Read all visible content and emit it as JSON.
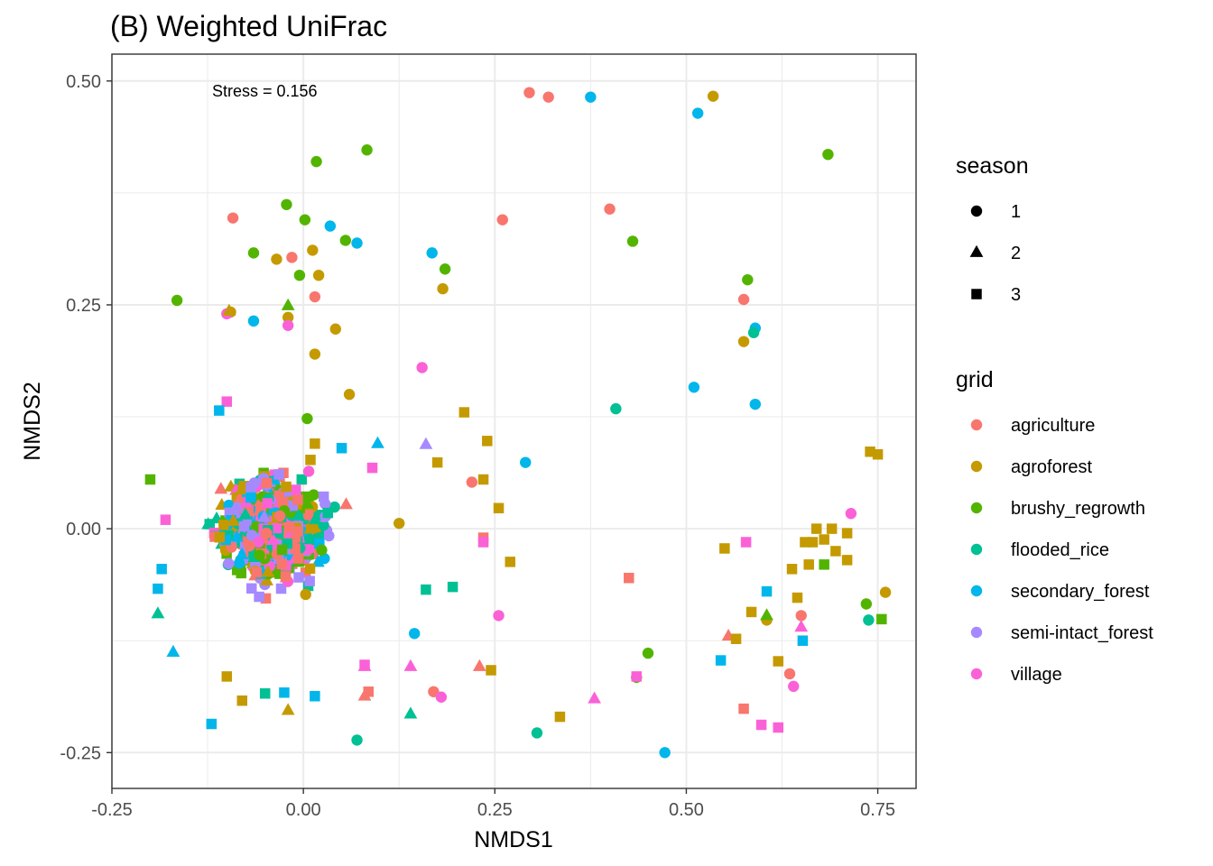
{
  "chart_data": {
    "type": "scatter",
    "title": "(B) Weighted UniFrac",
    "xlabel": "NMDS1",
    "ylabel": "NMDS2",
    "xlim": [
      -0.25,
      0.8
    ],
    "ylim": [
      -0.29,
      0.53
    ],
    "x_ticks": [
      -0.25,
      0.0,
      0.25,
      0.5,
      0.75
    ],
    "x_tick_labels": [
      "-0.25",
      "0.00",
      "0.25",
      "0.50",
      "0.75"
    ],
    "y_ticks": [
      -0.25,
      0.0,
      0.25,
      0.5
    ],
    "y_tick_labels": [
      "-0.25",
      "0.00",
      "0.25",
      "0.50"
    ],
    "grid": true,
    "annotation": "Stress = 0.156",
    "legend_position": "right",
    "legends": {
      "shape": {
        "title": "season",
        "items": [
          {
            "label": "1",
            "shape": "circle"
          },
          {
            "label": "2",
            "shape": "triangle"
          },
          {
            "label": "3",
            "shape": "square"
          }
        ]
      },
      "color": {
        "title": "grid",
        "items": [
          {
            "label": "agriculture",
            "color": "#F8766D"
          },
          {
            "label": "agroforest",
            "color": "#C49A00"
          },
          {
            "label": "brushy_regrowth",
            "color": "#53B400"
          },
          {
            "label": "flooded_rice",
            "color": "#00C094"
          },
          {
            "label": "secondary_forest",
            "color": "#00B6EB"
          },
          {
            "label": "semi-intact_forest",
            "color": "#A58AFF"
          },
          {
            "label": "village",
            "color": "#FB61D7"
          }
        ]
      }
    },
    "points": [
      [
        0.295,
        0.487,
        "agriculture",
        "1"
      ],
      [
        0.32,
        0.482,
        "agriculture",
        "1"
      ],
      [
        0.375,
        0.482,
        "secondary_forest",
        "1"
      ],
      [
        0.535,
        0.483,
        "agroforest",
        "1"
      ],
      [
        0.515,
        0.464,
        "secondary_forest",
        "1"
      ],
      [
        0.083,
        0.423,
        "brushy_regrowth",
        "1"
      ],
      [
        0.017,
        0.41,
        "brushy_regrowth",
        "1"
      ],
      [
        0.685,
        0.418,
        "brushy_regrowth",
        "1"
      ],
      [
        -0.022,
        0.362,
        "brushy_regrowth",
        "1"
      ],
      [
        -0.092,
        0.347,
        "agriculture",
        "1"
      ],
      [
        0.002,
        0.345,
        "brushy_regrowth",
        "1"
      ],
      [
        0.035,
        0.338,
        "secondary_forest",
        "1"
      ],
      [
        0.26,
        0.345,
        "agriculture",
        "1"
      ],
      [
        0.4,
        0.357,
        "agriculture",
        "1"
      ],
      [
        0.43,
        0.321,
        "brushy_regrowth",
        "1"
      ],
      [
        0.055,
        0.322,
        "brushy_regrowth",
        "1"
      ],
      [
        0.07,
        0.319,
        "secondary_forest",
        "1"
      ],
      [
        0.012,
        0.311,
        "agroforest",
        "1"
      ],
      [
        -0.065,
        0.308,
        "brushy_regrowth",
        "1"
      ],
      [
        -0.035,
        0.301,
        "agroforest",
        "1"
      ],
      [
        -0.015,
        0.303,
        "agriculture",
        "1"
      ],
      [
        0.168,
        0.308,
        "secondary_forest",
        "1"
      ],
      [
        0.185,
        0.29,
        "brushy_regrowth",
        "1"
      ],
      [
        0.02,
        0.283,
        "agroforest",
        "1"
      ],
      [
        -0.005,
        0.283,
        "brushy_regrowth",
        "1"
      ],
      [
        0.182,
        0.268,
        "agroforest",
        "1"
      ],
      [
        0.015,
        0.259,
        "agriculture",
        "1"
      ],
      [
        0.58,
        0.278,
        "brushy_regrowth",
        "1"
      ],
      [
        0.575,
        0.256,
        "agriculture",
        "1"
      ],
      [
        -0.165,
        0.255,
        "brushy_regrowth",
        "1"
      ],
      [
        -0.095,
        0.242,
        "agroforest",
        "1"
      ],
      [
        -0.1,
        0.24,
        "village",
        "1"
      ],
      [
        -0.02,
        0.236,
        "agroforest",
        "1"
      ],
      [
        -0.065,
        0.232,
        "secondary_forest",
        "1"
      ],
      [
        -0.02,
        0.227,
        "village",
        "1"
      ],
      [
        0.042,
        0.223,
        "agroforest",
        "1"
      ],
      [
        0.59,
        0.224,
        "secondary_forest",
        "1"
      ],
      [
        0.588,
        0.219,
        "flooded_rice",
        "1"
      ],
      [
        0.575,
        0.209,
        "agroforest",
        "1"
      ],
      [
        0.015,
        0.195,
        "agroforest",
        "1"
      ],
      [
        0.155,
        0.18,
        "village",
        "1"
      ],
      [
        0.51,
        0.158,
        "secondary_forest",
        "1"
      ],
      [
        0.06,
        0.15,
        "agroforest",
        "1"
      ],
      [
        0.59,
        0.139,
        "secondary_forest",
        "1"
      ],
      [
        0.408,
        0.134,
        "flooded_rice",
        "1"
      ],
      [
        0.005,
        0.123,
        "brushy_regrowth",
        "1"
      ],
      [
        0.29,
        0.074,
        "secondary_forest",
        "1"
      ],
      [
        0.22,
        0.052,
        "agriculture",
        "1"
      ],
      [
        0.125,
        0.006,
        "agroforest",
        "1"
      ],
      [
        0.715,
        0.017,
        "village",
        "1"
      ],
      [
        0.76,
        -0.071,
        "agroforest",
        "1"
      ],
      [
        0.735,
        -0.084,
        "brushy_regrowth",
        "1"
      ],
      [
        0.738,
        -0.102,
        "flooded_rice",
        "1"
      ],
      [
        0.65,
        -0.097,
        "agriculture",
        "1"
      ],
      [
        0.605,
        -0.102,
        "agroforest",
        "1"
      ],
      [
        0.255,
        -0.097,
        "village",
        "1"
      ],
      [
        0.145,
        -0.117,
        "secondary_forest",
        "1"
      ],
      [
        0.45,
        -0.139,
        "brushy_regrowth",
        "1"
      ],
      [
        0.435,
        -0.166,
        "brushy_regrowth",
        "1"
      ],
      [
        0.635,
        -0.162,
        "agriculture",
        "1"
      ],
      [
        0.64,
        -0.176,
        "village",
        "1"
      ],
      [
        0.17,
        -0.182,
        "agriculture",
        "1"
      ],
      [
        0.18,
        -0.188,
        "village",
        "1"
      ],
      [
        0.305,
        -0.228,
        "flooded_rice",
        "1"
      ],
      [
        0.07,
        -0.236,
        "flooded_rice",
        "1"
      ],
      [
        0.472,
        -0.25,
        "secondary_forest",
        "1"
      ],
      [
        -0.02,
        0.249,
        "brushy_regrowth",
        "2"
      ],
      [
        -0.097,
        0.243,
        "agroforest",
        "2"
      ],
      [
        0.097,
        0.095,
        "secondary_forest",
        "2"
      ],
      [
        0.16,
        0.094,
        "semi-intact_forest",
        "2"
      ],
      [
        0.65,
        -0.11,
        "village",
        "2"
      ],
      [
        0.555,
        -0.12,
        "agriculture",
        "2"
      ],
      [
        0.605,
        -0.097,
        "brushy_regrowth",
        "2"
      ],
      [
        0.23,
        -0.154,
        "agriculture",
        "2"
      ],
      [
        0.14,
        -0.154,
        "village",
        "2"
      ],
      [
        0.08,
        -0.154,
        "village",
        "2"
      ],
      [
        0.38,
        -0.19,
        "village",
        "2"
      ],
      [
        0.14,
        -0.207,
        "flooded_rice",
        "2"
      ],
      [
        -0.02,
        -0.203,
        "agroforest",
        "2"
      ],
      [
        0.08,
        -0.187,
        "agriculture",
        "2"
      ],
      [
        -0.19,
        -0.095,
        "flooded_rice",
        "2"
      ],
      [
        -0.17,
        -0.138,
        "secondary_forest",
        "2"
      ],
      [
        0.21,
        0.13,
        "agroforest",
        "3"
      ],
      [
        0.24,
        0.098,
        "agroforest",
        "3"
      ],
      [
        0.175,
        0.074,
        "agroforest",
        "3"
      ],
      [
        0.235,
        0.055,
        "agroforest",
        "3"
      ],
      [
        0.255,
        0.023,
        "agroforest",
        "3"
      ],
      [
        0.74,
        0.086,
        "agroforest",
        "3"
      ],
      [
        0.75,
        0.083,
        "agroforest",
        "3"
      ],
      [
        0.235,
        -0.01,
        "agriculture",
        "3"
      ],
      [
        0.235,
        -0.015,
        "village",
        "3"
      ],
      [
        0.27,
        -0.037,
        "agroforest",
        "3"
      ],
      [
        0.195,
        -0.065,
        "flooded_rice",
        "3"
      ],
      [
        0.16,
        -0.068,
        "flooded_rice",
        "3"
      ],
      [
        0.425,
        -0.055,
        "agriculture",
        "3"
      ],
      [
        0.55,
        -0.022,
        "agroforest",
        "3"
      ],
      [
        0.578,
        -0.015,
        "village",
        "3"
      ],
      [
        0.655,
        -0.015,
        "agroforest",
        "3"
      ],
      [
        0.665,
        -0.015,
        "agroforest",
        "3"
      ],
      [
        0.67,
        0.0,
        "agroforest",
        "3"
      ],
      [
        0.68,
        -0.012,
        "agroforest",
        "3"
      ],
      [
        0.69,
        0.0,
        "agroforest",
        "3"
      ],
      [
        0.695,
        -0.025,
        "agroforest",
        "3"
      ],
      [
        0.71,
        -0.005,
        "agroforest",
        "3"
      ],
      [
        0.71,
        -0.035,
        "agroforest",
        "3"
      ],
      [
        0.66,
        -0.04,
        "agroforest",
        "3"
      ],
      [
        0.638,
        -0.045,
        "agroforest",
        "3"
      ],
      [
        0.68,
        -0.04,
        "brushy_regrowth",
        "3"
      ],
      [
        0.605,
        -0.07,
        "secondary_forest",
        "3"
      ],
      [
        0.645,
        -0.077,
        "agroforest",
        "3"
      ],
      [
        0.585,
        -0.093,
        "agroforest",
        "3"
      ],
      [
        0.755,
        -0.101,
        "brushy_regrowth",
        "3"
      ],
      [
        0.652,
        -0.125,
        "secondary_forest",
        "3"
      ],
      [
        0.565,
        -0.123,
        "agroforest",
        "3"
      ],
      [
        0.62,
        -0.148,
        "agroforest",
        "3"
      ],
      [
        0.545,
        -0.147,
        "secondary_forest",
        "3"
      ],
      [
        0.245,
        -0.158,
        "agroforest",
        "3"
      ],
      [
        0.435,
        -0.165,
        "village",
        "3"
      ],
      [
        0.575,
        -0.201,
        "agriculture",
        "3"
      ],
      [
        0.335,
        -0.21,
        "agroforest",
        "3"
      ],
      [
        0.598,
        -0.219,
        "village",
        "3"
      ],
      [
        0.62,
        -0.222,
        "village",
        "3"
      ],
      [
        -0.12,
        -0.218,
        "secondary_forest",
        "3"
      ],
      [
        -0.08,
        -0.192,
        "agroforest",
        "3"
      ],
      [
        0.015,
        -0.187,
        "secondary_forest",
        "3"
      ],
      [
        -0.05,
        -0.184,
        "flooded_rice",
        "3"
      ],
      [
        -0.025,
        -0.183,
        "secondary_forest",
        "3"
      ],
      [
        0.085,
        -0.182,
        "agriculture",
        "3"
      ],
      [
        -0.1,
        -0.165,
        "agroforest",
        "3"
      ],
      [
        0.08,
        -0.152,
        "village",
        "3"
      ],
      [
        -0.2,
        0.055,
        "brushy_regrowth",
        "3"
      ],
      [
        -0.18,
        0.01,
        "village",
        "3"
      ],
      [
        -0.185,
        -0.045,
        "secondary_forest",
        "3"
      ],
      [
        -0.19,
        -0.067,
        "secondary_forest",
        "3"
      ],
      [
        -0.1,
        0.142,
        "village",
        "3"
      ],
      [
        -0.11,
        0.132,
        "secondary_forest",
        "3"
      ],
      [
        0.015,
        0.095,
        "agroforest",
        "3"
      ],
      [
        0.05,
        0.09,
        "secondary_forest",
        "3"
      ],
      [
        0.09,
        0.068,
        "village",
        "3"
      ]
    ]
  }
}
